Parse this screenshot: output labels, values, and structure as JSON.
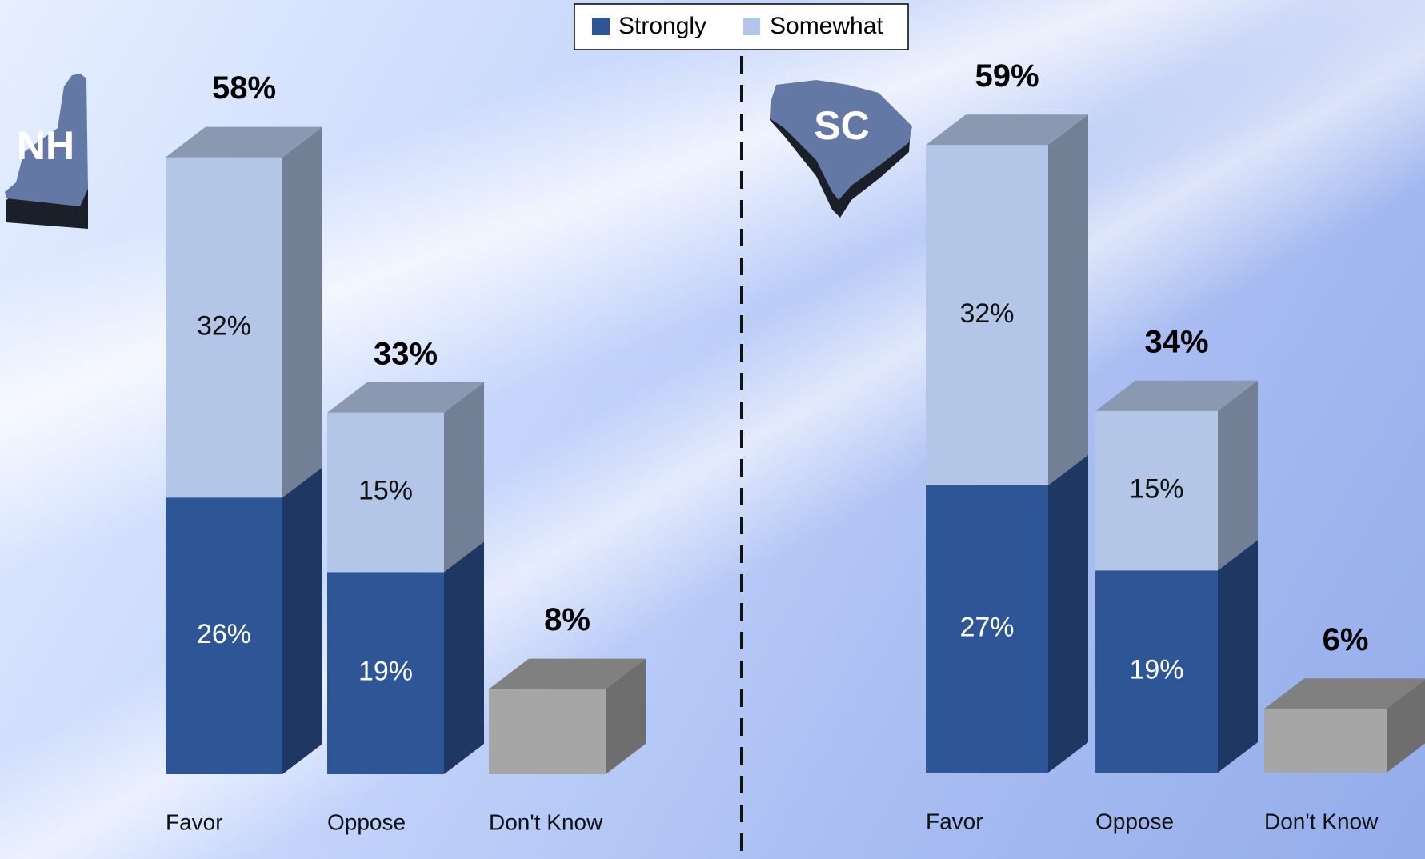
{
  "chart_data": [
    {
      "type": "bar3d",
      "state": "NH",
      "categories": [
        "Favor",
        "Oppose",
        "Don't Know"
      ],
      "series": [
        {
          "name": "Strongly",
          "color": "#2e5596",
          "values": [
            26,
            19,
            null
          ],
          "value_labels": [
            "26%",
            "19%",
            null
          ]
        },
        {
          "name": "Somewhat",
          "color": "#b4c6e7",
          "values": [
            32,
            15,
            null
          ],
          "value_labels": [
            "32%",
            "15%",
            null
          ]
        }
      ],
      "totals": {
        "values": [
          58,
          33,
          8
        ],
        "value_labels": [
          "58%",
          "33%",
          "8%"
        ]
      },
      "other_color": "#a6a6a6"
    },
    {
      "type": "bar3d",
      "state": "SC",
      "categories": [
        "Favor",
        "Oppose",
        "Don't Know"
      ],
      "series": [
        {
          "color": "#2e5596",
          "values": [
            27,
            19,
            null
          ],
          "value_labels": [
            "27%",
            "19%",
            null
          ]
        },
        {
          "color": "#b4c6e7",
          "values": [
            32,
            15,
            null
          ],
          "value_labels": [
            "32%",
            "15%",
            null
          ]
        }
      ],
      "totals": {
        "values": [
          59,
          34,
          6
        ],
        "value_labels": [
          "59%",
          "34%",
          "6%"
        ]
      },
      "other_color": "#a6a6a6"
    }
  ]
}
